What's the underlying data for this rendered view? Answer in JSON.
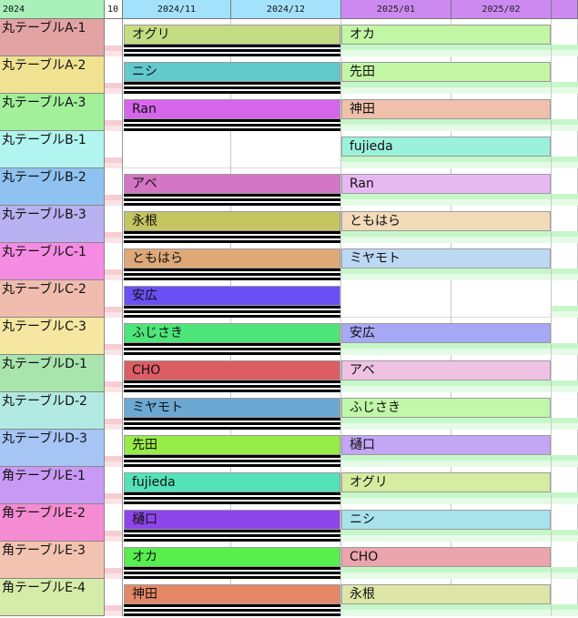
{
  "header": {
    "year": "2024",
    "sub": "10",
    "months": [
      "2024/11",
      "2024/12",
      "2025/01",
      "2025/02"
    ]
  },
  "rows": [
    {
      "name": "丸テーブルA-1",
      "color": "#e3a3a3",
      "a": "オグリ",
      "a_color": "#c4dc82",
      "b": "オカ",
      "b_color": "#c2f5a4"
    },
    {
      "name": "丸テーブルA-2",
      "color": "#f1e292",
      "a": "ニシ",
      "a_color": "#62c9cd",
      "b": "先田",
      "b_color": "#c2f5a4"
    },
    {
      "name": "丸テーブルA-3",
      "color": "#a2f09a",
      "a": "Ran",
      "a_color": "#d765ec",
      "b": "神田",
      "b_color": "#efc0ac"
    },
    {
      "name": "丸テーブルB-1",
      "color": "#b2f4ef",
      "a": "",
      "a_color": "",
      "b": "fujieda",
      "b_color": "#9bf1db"
    },
    {
      "name": "丸テーブルB-2",
      "color": "#8fc2f0",
      "a": "アベ",
      "a_color": "#d475c5",
      "b": "Ran",
      "b_color": "#e7b9f3"
    },
    {
      "name": "丸テーブルB-3",
      "color": "#b9b1f1",
      "a": "永根",
      "a_color": "#c5c562",
      "b": "ともはら",
      "b_color": "#f2dbb9"
    },
    {
      "name": "丸テーブルC-1",
      "color": "#f58be3",
      "a": "ともはら",
      "a_color": "#dea977",
      "b": "ミヤモト",
      "b_color": "#bcd8f3"
    },
    {
      "name": "丸テーブルC-2",
      "color": "#f0bcae",
      "a": "安広",
      "a_color": "#6a4ff5",
      "b": "",
      "b_color": ""
    },
    {
      "name": "丸テーブルC-3",
      "color": "#f5e6a2",
      "a": "ふじさき",
      "a_color": "#4ee67a",
      "b": "安広",
      "b_color": "#a7a8f4"
    },
    {
      "name": "丸テーブルD-1",
      "color": "#a7e5ad",
      "a": "CHO",
      "a_color": "#dd5d64",
      "b": "アベ",
      "b_color": "#efc2e4"
    },
    {
      "name": "丸テーブルD-2",
      "color": "#b2eae3",
      "a": "ミヤモト",
      "a_color": "#6ba9d3",
      "b": "ふじさき",
      "b_color": "#c1f7a9"
    },
    {
      "name": "丸テーブルD-3",
      "color": "#a6c5f5",
      "a": "先田",
      "a_color": "#98ec47",
      "b": "樋口",
      "b_color": "#c3a6f4"
    },
    {
      "name": "角テーブルE-1",
      "color": "#c99af5",
      "a": "fujieda",
      "a_color": "#54e2b9",
      "b": "オグリ",
      "b_color": "#d6eca0"
    },
    {
      "name": "角テーブルE-2",
      "color": "#f58bd3",
      "a": "樋口",
      "a_color": "#8f45ec",
      "b": "ニシ",
      "b_color": "#a8e3ec"
    },
    {
      "name": "角テーブルE-3",
      "color": "#f3c3b2",
      "a": "オカ",
      "a_color": "#58ee4d",
      "b": "CHO",
      "b_color": "#eba5ac"
    },
    {
      "name": "角テーブルE-4",
      "color": "#d5eca9",
      "a": "神田",
      "a_color": "#e58867",
      "b": "永根",
      "b_color": "#dde6a6"
    }
  ]
}
